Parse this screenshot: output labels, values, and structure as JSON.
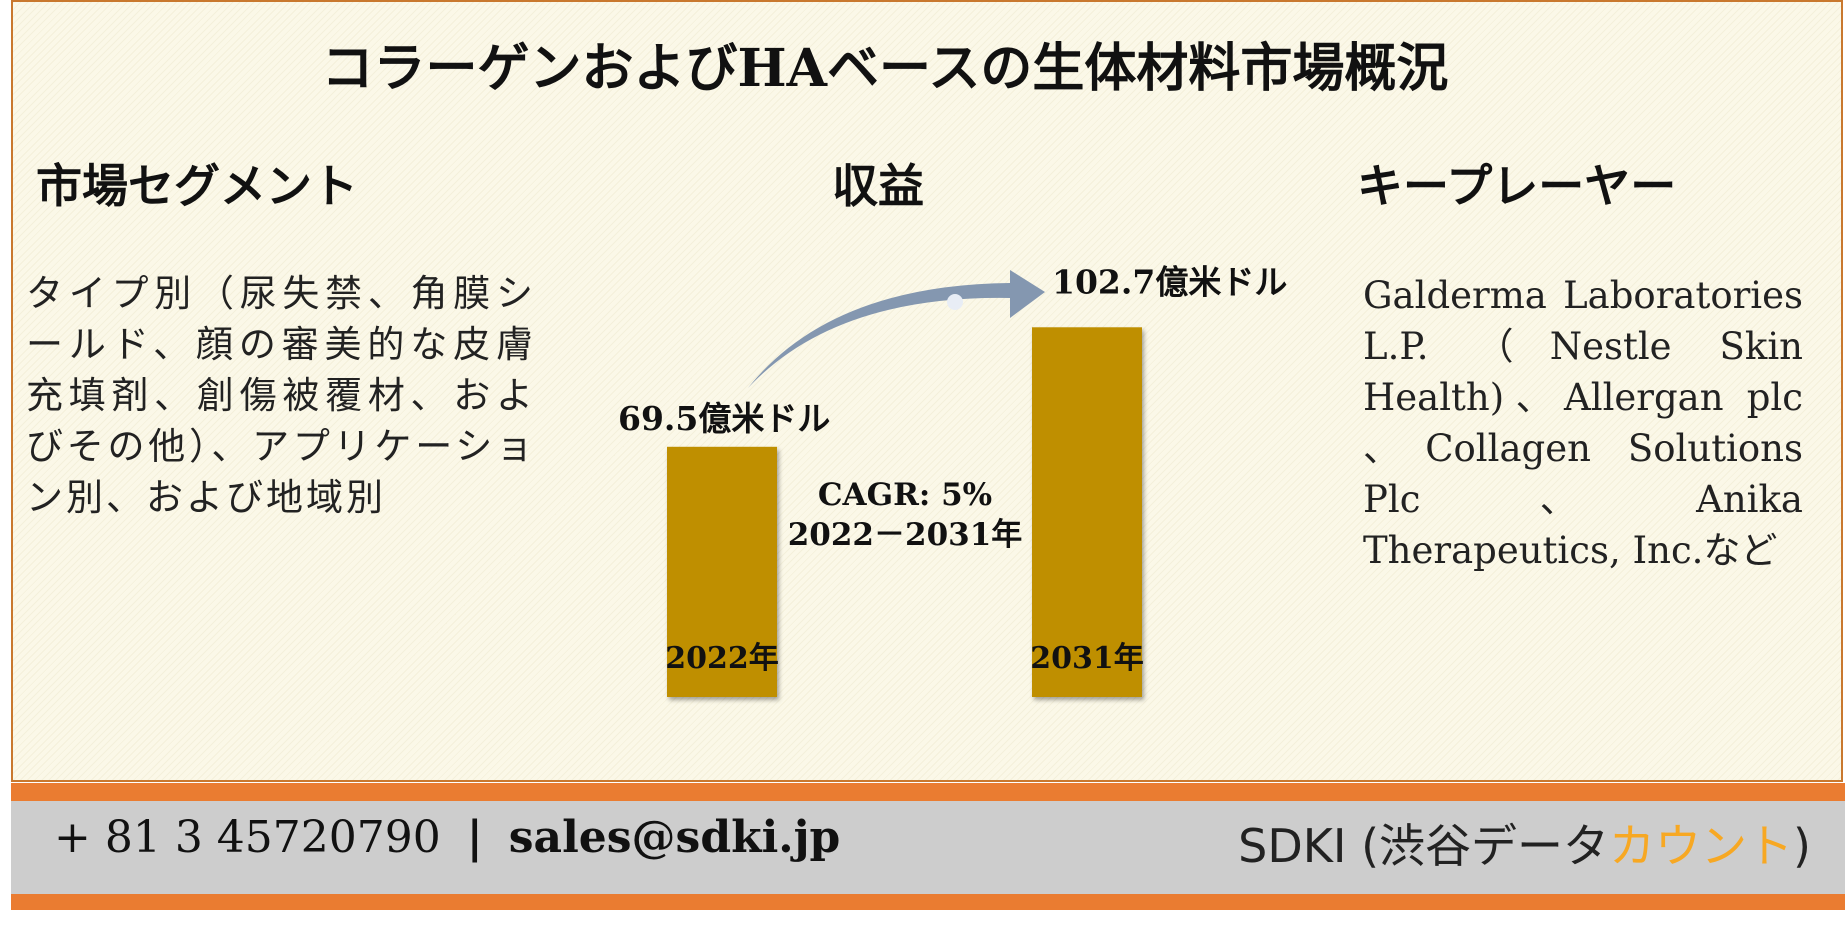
{
  "title": "コラーゲンおよびHAベースの生体材料市場概況",
  "sections": {
    "segments": {
      "heading": "市場セグメント",
      "body": "タイプ別（尿失禁、角膜シールド、顔の審美的な皮膚充填剤、創傷被覆材、およびその他）、アプリケーション別、および地域別"
    },
    "revenue": {
      "heading": "収益"
    },
    "players": {
      "heading": "キープレーヤー",
      "body": "Galderma Laboratories L.P. （Nestle Skin Health)、Allergan plc 、Collagen Solutions Plc、Anika Therapeutics, Inc.など"
    }
  },
  "chart_data": {
    "type": "bar",
    "categories": [
      "2022年",
      "2031年"
    ],
    "values": [
      69.5,
      102.7
    ],
    "value_labels": [
      "69.5億米ドル",
      "102.7億米ドル"
    ],
    "annotation": [
      "CAGR: 5%",
      "2022－2031年"
    ],
    "bar_color": "#bf8f00",
    "arrow_color": "#8497b0"
  },
  "footer": {
    "phone": "+ 81 3 45720790",
    "separator": "|",
    "email": "sales@sdki.jp",
    "brand_main": "SDKI (渋谷データ",
    "brand_accent": "カウント",
    "brand_end": ")",
    "accent_color": "#f7a823",
    "bar_color": "#ea7c31"
  }
}
